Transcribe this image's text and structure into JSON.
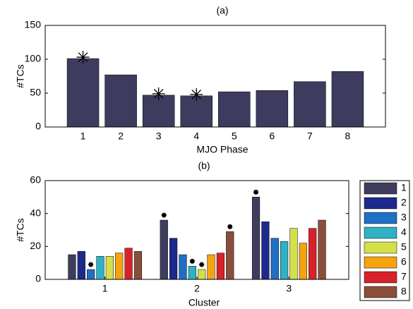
{
  "chart_data": [
    {
      "type": "bar",
      "title": "(a)",
      "xlabel": "MJO Phase",
      "ylabel": "#TCs",
      "categories": [
        "1",
        "2",
        "3",
        "4",
        "5",
        "6",
        "7",
        "8"
      ],
      "values": [
        101,
        77,
        47,
        46,
        52,
        54,
        67,
        82
      ],
      "significant": [
        true,
        false,
        true,
        true,
        false,
        false,
        false,
        false
      ],
      "color": "#3d3b5e",
      "ylim": [
        0,
        150
      ],
      "yticks": [
        0,
        50,
        100,
        150
      ]
    },
    {
      "type": "grouped-bar",
      "title": "(b)",
      "xlabel": "Cluster",
      "ylabel": "#TCs",
      "categories": [
        "1",
        "2",
        "3"
      ],
      "series": [
        {
          "name": "1",
          "color": "#3f3d5e",
          "values": [
            15,
            36,
            50
          ],
          "significant": [
            false,
            true,
            true
          ]
        },
        {
          "name": "2",
          "color": "#1c2a8c",
          "values": [
            17,
            25,
            35
          ],
          "significant": [
            false,
            false,
            false
          ]
        },
        {
          "name": "3",
          "color": "#1f6fc4",
          "values": [
            6,
            15,
            25
          ],
          "significant": [
            true,
            false,
            false
          ]
        },
        {
          "name": "4",
          "color": "#2fb1c4",
          "values": [
            14,
            8,
            23
          ],
          "significant": [
            false,
            true,
            false
          ]
        },
        {
          "name": "5",
          "color": "#d4e04a",
          "values": [
            14,
            6,
            31
          ],
          "significant": [
            false,
            true,
            false
          ]
        },
        {
          "name": "6",
          "color": "#f5a40f",
          "values": [
            16,
            15,
            22
          ],
          "significant": [
            false,
            false,
            false
          ]
        },
        {
          "name": "7",
          "color": "#d8222a",
          "values": [
            19,
            16,
            31
          ],
          "significant": [
            false,
            false,
            false
          ]
        },
        {
          "name": "8",
          "color": "#8a4f3a",
          "values": [
            17,
            29,
            36
          ],
          "significant": [
            false,
            true,
            false
          ]
        }
      ],
      "ylim": [
        0,
        60
      ],
      "yticks": [
        0,
        20,
        40,
        60
      ],
      "legend": "outside-right"
    }
  ]
}
